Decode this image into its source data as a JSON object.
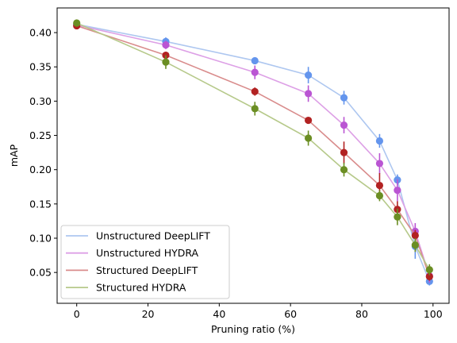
{
  "chart_data": {
    "type": "line",
    "title": "",
    "xlabel": "Pruning ratio (%)",
    "ylabel": "mAP",
    "xlim": [
      -5.5,
      104.5
    ],
    "ylim": [
      0.005,
      0.436
    ],
    "xticks": [
      0,
      20,
      40,
      60,
      80,
      100
    ],
    "yticks": [
      0.05,
      0.1,
      0.15,
      0.2,
      0.25,
      0.3,
      0.35,
      0.4
    ],
    "xtick_labels": [
      "0",
      "20",
      "40",
      "60",
      "80",
      "100"
    ],
    "ytick_labels": [
      "0.05",
      "0.10",
      "0.15",
      "0.20",
      "0.25",
      "0.30",
      "0.35",
      "0.40"
    ],
    "grid": false,
    "legend_position": "lower-left",
    "x": [
      0,
      25,
      50,
      65,
      75,
      85,
      90,
      95,
      99
    ],
    "series": [
      {
        "name": "Unstructured DeepLIFT",
        "line_color": "#aec7f0",
        "marker_color": "#6495ed",
        "values": [
          0.412,
          0.387,
          0.359,
          0.338,
          0.305,
          0.242,
          0.185,
          0.088,
          0.037
        ],
        "errors": [
          0.003,
          0.006,
          0.005,
          0.012,
          0.01,
          0.01,
          0.008,
          0.018,
          0.006
        ]
      },
      {
        "name": "Unstructured HYDRA",
        "line_color": "#dda0e6",
        "marker_color": "#ba55d3",
        "values": [
          0.411,
          0.382,
          0.342,
          0.311,
          0.265,
          0.209,
          0.17,
          0.11,
          0.045
        ],
        "errors": [
          0.003,
          0.006,
          0.01,
          0.012,
          0.012,
          0.015,
          0.016,
          0.012,
          0.01
        ]
      },
      {
        "name": "Structured DeepLIFT",
        "line_color": "#d98c8c",
        "marker_color": "#b22222",
        "values": [
          0.41,
          0.367,
          0.314,
          0.272,
          0.225,
          0.177,
          0.142,
          0.104,
          0.044
        ],
        "errors": [
          0.002,
          0.005,
          0.006,
          0.003,
          0.016,
          0.018,
          0.012,
          0.008,
          0.006
        ]
      },
      {
        "name": "Structured HYDRA",
        "line_color": "#b6c98a",
        "marker_color": "#6b8e23",
        "values": [
          0.414,
          0.357,
          0.289,
          0.246,
          0.2,
          0.162,
          0.131,
          0.09,
          0.054
        ],
        "errors": [
          0.003,
          0.01,
          0.01,
          0.011,
          0.01,
          0.008,
          0.012,
          0.01,
          0.008
        ]
      }
    ]
  }
}
